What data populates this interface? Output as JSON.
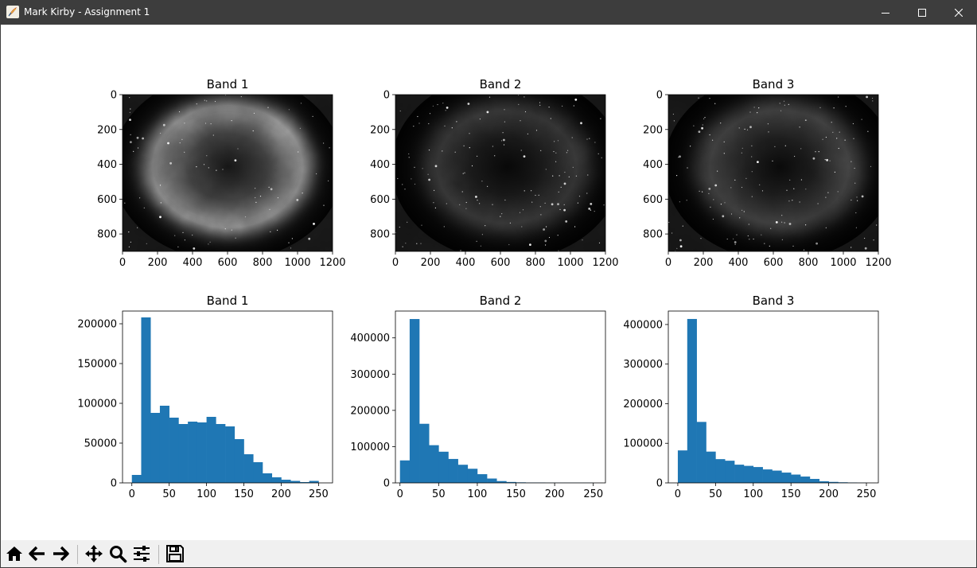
{
  "window": {
    "title": "Mark Kirby - Assignment 1",
    "titlebar_color": "#3d3d3d",
    "app_icon": "python-feather-icon",
    "controls": [
      "minimize-icon",
      "maximize-icon",
      "close-icon"
    ]
  },
  "figure": {
    "images": [
      {
        "title": "Band 1",
        "xticks": [
          0,
          200,
          400,
          600,
          800,
          1000,
          1200
        ],
        "yticks": [
          0,
          200,
          400,
          600,
          800
        ],
        "xlim": [
          0,
          1200
        ],
        "ylim": [
          0,
          900
        ]
      },
      {
        "title": "Band 2",
        "xticks": [
          0,
          200,
          400,
          600,
          800,
          1000,
          1200
        ],
        "yticks": [
          0,
          200,
          400,
          600,
          800
        ],
        "xlim": [
          0,
          1200
        ],
        "ylim": [
          0,
          900
        ]
      },
      {
        "title": "Band 3",
        "xticks": [
          0,
          200,
          400,
          600,
          800,
          1000,
          1200
        ],
        "yticks": [
          0,
          200,
          400,
          600,
          800
        ],
        "xlim": [
          0,
          1200
        ],
        "ylim": [
          0,
          900
        ]
      }
    ],
    "bar_color": "#1f77b4"
  },
  "chart_data": [
    {
      "type": "bar",
      "title": "Band 1",
      "bin_width": 12.5,
      "bins_start": [
        0,
        12.5,
        25,
        37.5,
        50,
        62.5,
        75,
        87.5,
        100,
        112.5,
        125,
        137.5,
        150,
        162.5,
        175,
        187.5,
        200,
        212.5,
        225,
        237.5
      ],
      "values": [
        10000,
        208000,
        88000,
        97000,
        82000,
        74000,
        77000,
        76000,
        83000,
        74000,
        71000,
        55000,
        36000,
        26000,
        12000,
        7000,
        4000,
        2500,
        1000,
        2500
      ],
      "xlim": [
        -12.5,
        268.75
      ],
      "ylim": [
        0,
        216000
      ],
      "xticks": [
        0,
        50,
        100,
        150,
        200,
        250
      ],
      "yticks": [
        0,
        50000,
        100000,
        150000,
        200000
      ],
      "grid": false
    },
    {
      "type": "bar",
      "title": "Band 2",
      "bin_width": 12.5,
      "bins_start": [
        0,
        12.5,
        25,
        37.5,
        50,
        62.5,
        75,
        87.5,
        100,
        112.5,
        125,
        137.5,
        150,
        162.5,
        175,
        187.5,
        200,
        212.5,
        225,
        237.5
      ],
      "values": [
        62000,
        452000,
        163000,
        104000,
        86000,
        66000,
        50000,
        39000,
        24000,
        12000,
        5000,
        2500,
        1500,
        1000,
        1000,
        500,
        500,
        500,
        500,
        500
      ],
      "xlim": [
        -5.9,
        265.7
      ],
      "ylim": [
        0,
        474000
      ],
      "xticks": [
        0,
        50,
        100,
        150,
        200,
        250
      ],
      "yticks": [
        0,
        100000,
        200000,
        300000,
        400000
      ],
      "grid": false
    },
    {
      "type": "bar",
      "title": "Band 3",
      "bin_width": 12.5,
      "bins_start": [
        0,
        12.5,
        25,
        37.5,
        50,
        62.5,
        75,
        87.5,
        100,
        112.5,
        125,
        137.5,
        150,
        162.5,
        175,
        187.5,
        200,
        212.5,
        225,
        237.5
      ],
      "values": [
        82000,
        414000,
        154000,
        79000,
        60000,
        56000,
        46000,
        43000,
        40000,
        34000,
        31000,
        26000,
        21000,
        16000,
        10000,
        4000,
        2500,
        1500,
        1000,
        500
      ],
      "xlim": [
        -12.6,
        265.8
      ],
      "ylim": [
        0,
        434000
      ],
      "xticks": [
        0,
        50,
        100,
        150,
        200,
        250
      ],
      "yticks": [
        0,
        100000,
        200000,
        300000,
        400000
      ],
      "grid": false
    }
  ],
  "toolbar": {
    "buttons": [
      "home-icon",
      "back-arrow-icon",
      "forward-arrow-icon",
      "pan-move-icon",
      "zoom-magnifier-icon",
      "configure-subplots-icon",
      "save-floppy-icon"
    ]
  }
}
